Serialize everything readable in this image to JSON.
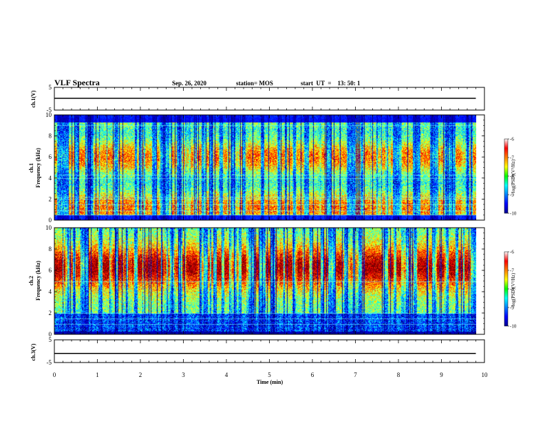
{
  "header": {
    "title": "VLF Spectra",
    "date": "Sep. 26, 2020",
    "station": "station= MOS",
    "start": "start  UT  =    13: 50: 1"
  },
  "chart_data": [
    {
      "type": "line",
      "panel": "ch1-waveform",
      "ylabel": "ch.1(V)",
      "ylim": [
        -5,
        5
      ],
      "yticks": [
        "5",
        "-5"
      ],
      "xlim": [
        0,
        10
      ],
      "series": [
        {
          "x": [
            0,
            9.8
          ],
          "values": [
            0.2,
            0.2
          ]
        }
      ]
    },
    {
      "type": "heatmap",
      "panel": "ch1-spectrogram",
      "ylabel_top": "ch.1",
      "ylabel": "Frequency  (kHz)",
      "ylim": [
        0,
        10
      ],
      "yticks": [
        "0",
        "2",
        "4",
        "6",
        "8",
        "10"
      ],
      "xlim": [
        0,
        10
      ],
      "data_extent_min": 9.8,
      "colorbar": {
        "label": "log(PSD)(V²/Hz)",
        "range": [
          -10,
          -6
        ],
        "ticks": [
          "-6",
          "-7",
          "-8",
          "-9",
          "-10"
        ]
      },
      "hum_lines_khz": [
        0.5,
        0.9,
        1.5,
        2.0,
        2.2,
        4.0,
        4.3,
        9.0
      ],
      "band_khz": [
        0.5,
        9.3
      ],
      "seed": 11
    },
    {
      "type": "heatmap",
      "panel": "ch2-spectrogram",
      "ylabel_top": "ch.2",
      "ylabel": "Frequency  (kHz)",
      "ylim": [
        0,
        10
      ],
      "yticks": [
        "0",
        "2",
        "4",
        "6",
        "8",
        "10"
      ],
      "xlim": [
        0,
        10
      ],
      "data_extent_min": 9.8,
      "colorbar": {
        "label": "log(PSD)(V²/Hz)",
        "range": [
          -10,
          -6
        ],
        "ticks": [
          "-6",
          "-7",
          "-8",
          "-9",
          "-10"
        ]
      },
      "hum_lines_khz": [
        1.0,
        1.5,
        2.0,
        5.0
      ],
      "band_khz": [
        0.3,
        10.0
      ],
      "seed": 23
    },
    {
      "type": "line",
      "panel": "ch3-waveform",
      "ylabel": "ch.3(V)",
      "ylim": [
        -5,
        5
      ],
      "yticks": [
        "5",
        "-5"
      ],
      "xlim": [
        0,
        10
      ],
      "xlabel": "Time  (min)",
      "xticks": [
        "0",
        "1",
        "2",
        "3",
        "4",
        "5",
        "6",
        "7",
        "8",
        "9",
        "10"
      ],
      "series": [
        {
          "x": [
            0,
            9.8
          ],
          "values": [
            -1.0,
            -1.0
          ]
        }
      ]
    }
  ]
}
